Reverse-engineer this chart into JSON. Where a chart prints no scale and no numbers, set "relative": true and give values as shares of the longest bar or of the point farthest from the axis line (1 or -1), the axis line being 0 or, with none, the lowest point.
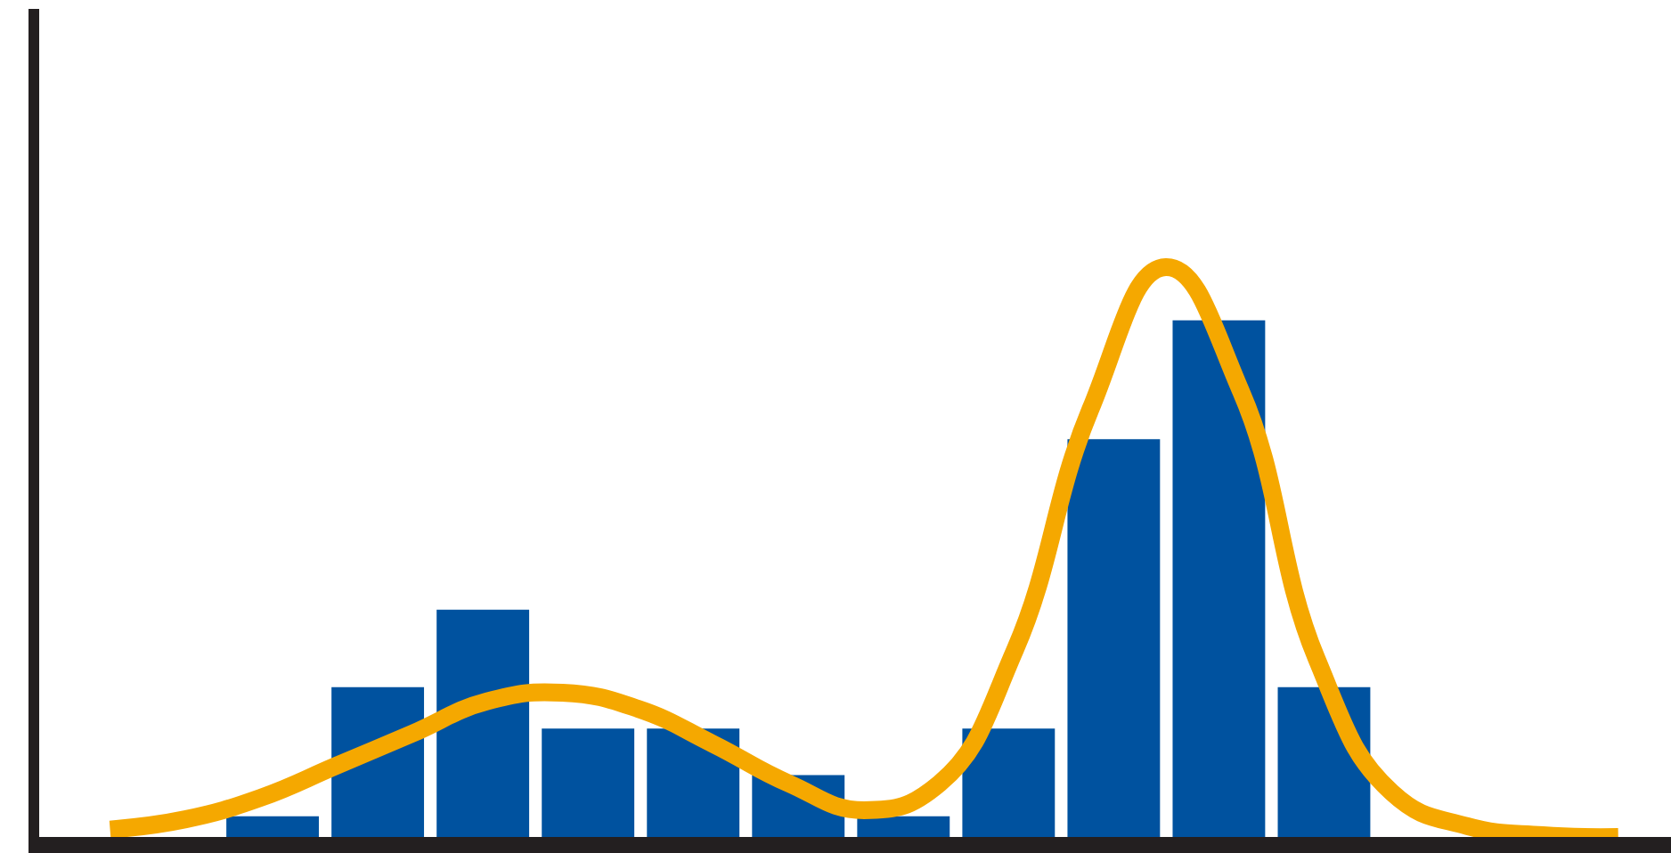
{
  "chart_data": [
    {
      "type": "bar",
      "relative": true,
      "legend": false,
      "categories": [
        null,
        null,
        null,
        null,
        null,
        null,
        null,
        null,
        null,
        null,
        null
      ],
      "color": "#00529f",
      "values": [
        0.04,
        0.29,
        0.44,
        0.21,
        0.21,
        0.12,
        0.04,
        0.21,
        0.77,
        1,
        0.29
      ]
    },
    {
      "type": "line",
      "relative": true,
      "legend": false,
      "categories": [
        null,
        null,
        null,
        null,
        null,
        null,
        null,
        null,
        null,
        null,
        null,
        null,
        null,
        null,
        null,
        null,
        null,
        null,
        null,
        null,
        null
      ],
      "color": "#f5a800",
      "values": [
        0.013,
        0.031,
        0.069,
        0.125,
        0.181,
        0.238,
        0.253,
        0.225,
        0.163,
        0.094,
        0.047,
        0.094,
        0.328,
        0.75,
        1,
        0.781,
        0.313,
        0.078,
        0.019,
        0.003,
        0
      ]
    }
  ]
}
